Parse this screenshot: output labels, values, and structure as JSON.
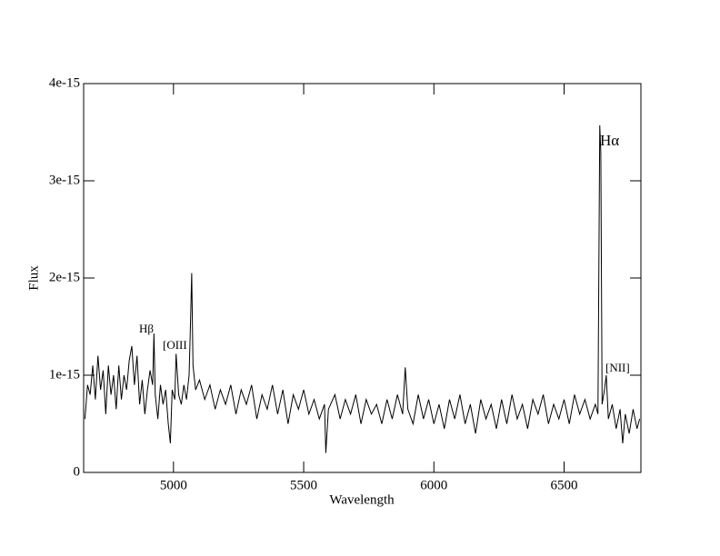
{
  "chart_data": {
    "type": "line",
    "xlabel": "Wavelength",
    "ylabel": "Flux",
    "xlim": [
      4655,
      6795
    ],
    "ylim": [
      0,
      4e-15
    ],
    "xticks": [
      5000,
      5500,
      6000,
      6500
    ],
    "yticks": [
      0,
      1e-15,
      2e-15,
      3e-15,
      4e-15
    ],
    "annotations": [
      "Hβ",
      "[OIII",
      "Hα",
      "[NII]"
    ],
    "x": [
      4660,
      4670,
      4680,
      4690,
      4700,
      4710,
      4720,
      4730,
      4740,
      4750,
      4760,
      4770,
      4780,
      4790,
      4800,
      4810,
      4820,
      4830,
      4840,
      4850,
      4860,
      4870,
      4880,
      4890,
      4900,
      4910,
      4920,
      4925,
      4930,
      4940,
      4950,
      4960,
      4970,
      4980,
      4988,
      4995,
      5005,
      5010,
      5020,
      5030,
      5040,
      5050,
      5060,
      5065,
      5070,
      5075,
      5085,
      5100,
      5120,
      5140,
      5160,
      5180,
      5200,
      5220,
      5240,
      5260,
      5280,
      5300,
      5320,
      5340,
      5360,
      5380,
      5400,
      5420,
      5440,
      5460,
      5480,
      5500,
      5520,
      5540,
      5560,
      5580,
      5585,
      5595,
      5620,
      5640,
      5660,
      5680,
      5700,
      5720,
      5740,
      5760,
      5780,
      5800,
      5820,
      5840,
      5860,
      5880,
      5890,
      5900,
      5920,
      5940,
      5960,
      5980,
      6000,
      6020,
      6040,
      6060,
      6080,
      6100,
      6120,
      6140,
      6160,
      6180,
      6200,
      6220,
      6240,
      6260,
      6280,
      6300,
      6320,
      6340,
      6360,
      6380,
      6400,
      6420,
      6440,
      6460,
      6480,
      6500,
      6520,
      6540,
      6560,
      6580,
      6600,
      6620,
      6630,
      6637,
      6641,
      6646,
      6655,
      6662,
      6670,
      6685,
      6700,
      6715,
      6725,
      6735,
      6750,
      6765,
      6780,
      6790
    ],
    "series": [
      {
        "color": "#000000",
        "values": [
          5.5e-16,
          9e-16,
          8e-16,
          1.1e-15,
          7.5e-16,
          1.2e-15,
          8.5e-16,
          1.05e-15,
          6e-16,
          1.1e-15,
          8e-16,
          1e-15,
          6.5e-16,
          1.1e-15,
          7.5e-16,
          1e-15,
          8.5e-16,
          1.15e-15,
          1.3e-15,
          9e-16,
          1.2e-15,
          7e-16,
          9.5e-16,
          6e-16,
          8.5e-16,
          1.05e-15,
          9e-16,
          1.43e-15,
          8e-16,
          5.5e-16,
          9e-16,
          7e-16,
          8.5e-16,
          5e-16,
          3e-16,
          8.5e-16,
          7.5e-16,
          1.22e-15,
          8e-16,
          7e-16,
          9e-16,
          7.5e-16,
          1e-15,
          1.5e-15,
          2.05e-15,
          1.1e-15,
          8.5e-16,
          9.5e-16,
          7.5e-16,
          9e-16,
          6.5e-16,
          8.5e-16,
          7e-16,
          9e-16,
          6e-16,
          8.5e-16,
          7e-16,
          9e-16,
          5.5e-16,
          8e-16,
          6.5e-16,
          9e-16,
          6e-16,
          8.5e-16,
          5e-16,
          8e-16,
          6.5e-16,
          8.5e-16,
          6e-16,
          7.5e-16,
          5.5e-16,
          7e-16,
          2e-16,
          6.5e-16,
          8e-16,
          5.5e-16,
          7.5e-16,
          6e-16,
          8e-16,
          5e-16,
          7.5e-16,
          6e-16,
          7e-16,
          5e-16,
          7.5e-16,
          5.5e-16,
          8e-16,
          6e-16,
          1.08e-15,
          6.5e-16,
          5e-16,
          8e-16,
          5.5e-16,
          7.5e-16,
          5e-16,
          7e-16,
          4.5e-16,
          7.5e-16,
          5.5e-16,
          8e-16,
          5e-16,
          7e-16,
          4e-16,
          7.5e-16,
          5.5e-16,
          7e-16,
          4.5e-16,
          7.5e-16,
          5e-16,
          8e-16,
          5.5e-16,
          7e-16,
          4.5e-16,
          7.5e-16,
          6e-16,
          8e-16,
          5e-16,
          7e-16,
          5.5e-16,
          7.5e-16,
          5e-16,
          8e-16,
          6e-16,
          7.5e-16,
          5.5e-16,
          7e-16,
          6e-16,
          3.57e-15,
          3.3e-15,
          7e-16,
          8.5e-16,
          1e-15,
          5.5e-16,
          7e-16,
          4.5e-16,
          6.5e-16,
          3e-16,
          6e-16,
          4e-16,
          6.5e-16,
          4.5e-16,
          5.5e-16
        ]
      }
    ]
  }
}
